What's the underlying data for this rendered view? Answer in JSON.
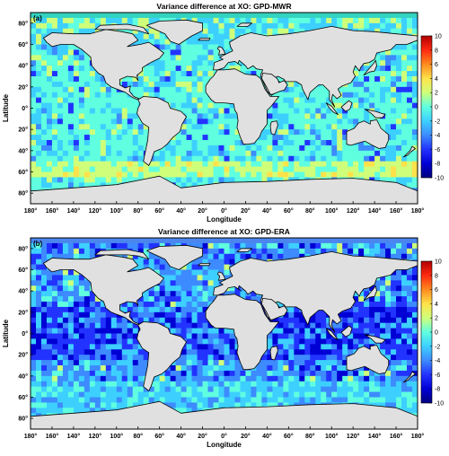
{
  "panels": [
    {
      "id": "a",
      "letter": "(a)",
      "title": "Variance difference at XO: GPD-MWR",
      "ylabel": "Latitude",
      "xlabel": "Longitude",
      "lat_ticks": [
        "80°",
        "60°",
        "40°",
        "20°",
        "0°",
        "20°",
        "40°",
        "60°",
        "80°"
      ],
      "lon_ticks": [
        "180°",
        "160°",
        "140°",
        "120°",
        "100°",
        "80°",
        "60°",
        "40°",
        "20°",
        "0°",
        "20°",
        "40°",
        "60°",
        "80°",
        "100°",
        "120°",
        "140°",
        "160°",
        "180°"
      ],
      "colorbar_ticks": [
        "10",
        "8",
        "6",
        "4",
        "2",
        "0",
        "-2",
        "-4",
        "-6",
        "-8",
        "-10"
      ]
    },
    {
      "id": "b",
      "letter": "(b)",
      "title": "Variance difference at XO: GPD-ERA",
      "ylabel": "Latitude",
      "xlabel": "Longitude",
      "lat_ticks": [
        "80°",
        "60°",
        "40°",
        "20°",
        "0°",
        "20°",
        "40°",
        "60°",
        "80°"
      ],
      "lon_ticks": [
        "180°",
        "160°",
        "140°",
        "120°",
        "100°",
        "80°",
        "60°",
        "40°",
        "20°",
        "0°",
        "20°",
        "40°",
        "60°",
        "80°",
        "100°",
        "120°",
        "140°",
        "160°",
        "180°"
      ],
      "colorbar_ticks": [
        "10",
        "8",
        "6",
        "4",
        "2",
        "0",
        "-2",
        "-4",
        "-6",
        "-8",
        "-10"
      ]
    }
  ],
  "map_style": {
    "ocean_a": "#33d3c0",
    "ocean_b": "#4a86ee",
    "land": "#e0e0e0",
    "coast": "#000000"
  },
  "colorscale": [
    "#00007f",
    "#0000d4",
    "#2233ff",
    "#3d8bff",
    "#3dd0ff",
    "#5fffe0",
    "#cfff7a",
    "#ffe24a",
    "#ff8a1f",
    "#ff2a10",
    "#b00000"
  ]
}
